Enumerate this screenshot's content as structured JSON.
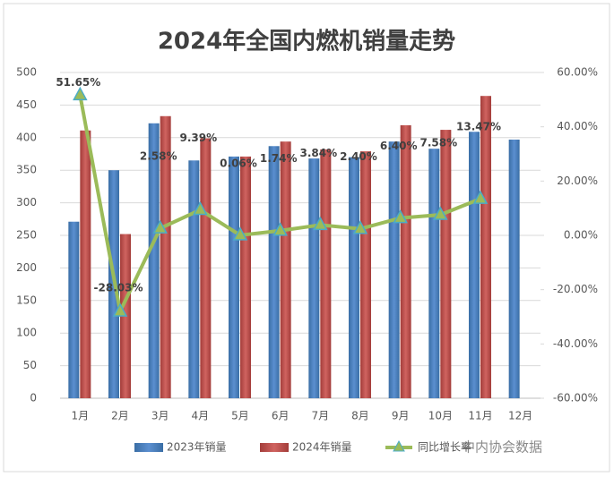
{
  "chart_data": {
    "type": "bar",
    "title": "2024年全国内燃机销量走势",
    "categories": [
      "1月",
      "2月",
      "3月",
      "4月",
      "5月",
      "6月",
      "7月",
      "8月",
      "9月",
      "10月",
      "11月",
      "12月"
    ],
    "series": [
      {
        "name": "2023年销量",
        "color": "#4f81bd",
        "values": [
          271,
          350,
          422,
          365,
          371,
          387,
          368,
          370,
          394,
          383,
          409,
          397
        ]
      },
      {
        "name": "2024年销量",
        "color": "#c0504d",
        "values": [
          411,
          252,
          433,
          399,
          371,
          394,
          382,
          379,
          419,
          412,
          464,
          null
        ]
      },
      {
        "name": "同比增长率",
        "type": "line",
        "axis": "y2",
        "color": "#9bbb59",
        "values": [
          51.65,
          -28.03,
          2.58,
          9.39,
          0.06,
          1.74,
          3.84,
          2.4,
          6.4,
          7.58,
          13.47,
          null
        ],
        "value_labels": [
          "51.65%",
          "-28.03%",
          "2.58%",
          "9.39%",
          "0.06%",
          "1.74%",
          "3.84%",
          "2.40%",
          "6.40%",
          "7.58%",
          "13.47%",
          null
        ]
      }
    ],
    "ylim": [
      0,
      500
    ],
    "yticks": [
      0,
      50,
      100,
      150,
      200,
      250,
      300,
      350,
      400,
      450,
      500
    ],
    "y2lim": [
      -60,
      60
    ],
    "y2ticks": [
      {
        "value": -60,
        "label": "-60.00%"
      },
      {
        "value": -40,
        "label": "-40.00%"
      },
      {
        "value": -20,
        "label": "-20.00%"
      },
      {
        "value": 0,
        "label": "0.00%"
      },
      {
        "value": 20,
        "label": "20.00%"
      },
      {
        "value": 40,
        "label": "40.00%"
      },
      {
        "value": 60,
        "label": "60.00%"
      }
    ],
    "grid": true,
    "legend": "bottom",
    "watermark": "中内协会数据"
  }
}
